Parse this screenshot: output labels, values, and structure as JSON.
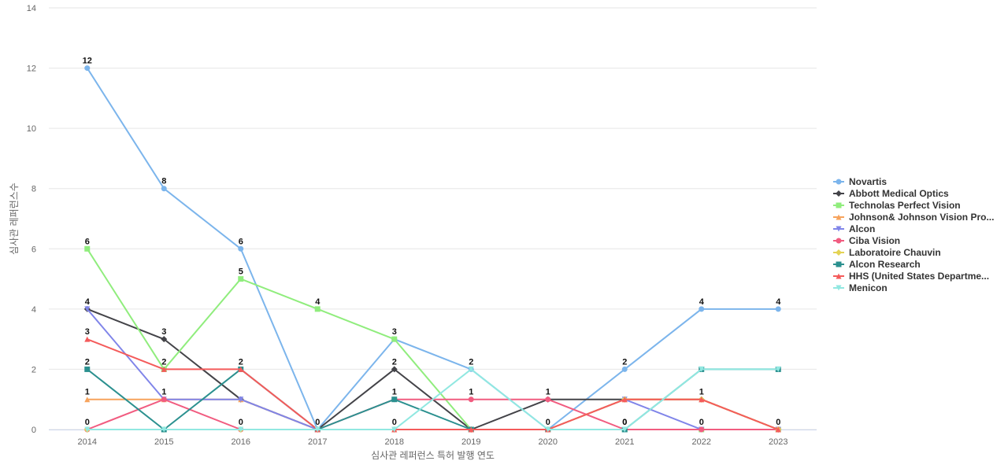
{
  "chart_data": {
    "type": "line",
    "xlabel": "심사관 레퍼런스 특허 발행 연도",
    "ylabel": "심사관 레퍼런스수",
    "ylim": [
      0,
      14
    ],
    "yticks": [
      0,
      2,
      4,
      6,
      8,
      10,
      12,
      14
    ],
    "grid": true,
    "legend_position": "right",
    "categories": [
      "2014",
      "2015",
      "2016",
      "2017",
      "2018",
      "2019",
      "2020",
      "2021",
      "2022",
      "2023"
    ],
    "series": [
      {
        "name": "Novartis",
        "color": "#7cb5ec",
        "marker": "circle",
        "values": [
          12,
          8,
          6,
          0,
          3,
          2,
          0,
          2,
          4,
          4
        ],
        "labels": [
          true,
          true,
          true,
          false,
          true,
          true,
          false,
          true,
          true,
          true
        ]
      },
      {
        "name": "Abbott Medical Optics",
        "color": "#434348",
        "marker": "diamond",
        "values": [
          4,
          3,
          1,
          0,
          2,
          0,
          1,
          1,
          1,
          0
        ],
        "labels": [
          true,
          true,
          false,
          false,
          true,
          false,
          false,
          false,
          false,
          false
        ]
      },
      {
        "name": "Technolas Perfect Vision",
        "color": "#90ed7d",
        "marker": "square",
        "values": [
          6,
          2,
          5,
          4,
          3,
          0,
          0,
          0,
          0,
          0
        ],
        "labels": [
          true,
          true,
          true,
          true,
          false,
          false,
          false,
          false,
          false,
          false
        ]
      },
      {
        "name": "Johnson& Johnson Vision Pro...",
        "color": "#f7a35c",
        "marker": "triangle",
        "values": [
          1,
          1,
          1,
          0,
          0,
          0,
          0,
          1,
          1,
          0
        ],
        "labels": [
          true,
          false,
          false,
          false,
          false,
          false,
          false,
          false,
          false,
          false
        ]
      },
      {
        "name": "Alcon",
        "color": "#8085e9",
        "marker": "triangle-down",
        "values": [
          4,
          1,
          1,
          0,
          0,
          0,
          0,
          1,
          0,
          0
        ],
        "labels": [
          false,
          false,
          false,
          false,
          false,
          false,
          false,
          false,
          false,
          false
        ]
      },
      {
        "name": "Ciba Vision",
        "color": "#f15c80",
        "marker": "circle",
        "values": [
          0,
          1,
          0,
          0,
          1,
          1,
          1,
          0,
          0,
          0
        ],
        "labels": [
          true,
          true,
          true,
          false,
          false,
          true,
          true,
          false,
          true,
          true
        ]
      },
      {
        "name": "Laboratoire Chauvin",
        "color": "#e4d354",
        "marker": "diamond",
        "values": [
          0,
          0,
          0,
          0,
          0,
          0,
          0,
          1,
          1,
          0
        ],
        "labels": [
          false,
          false,
          false,
          false,
          false,
          false,
          false,
          false,
          true,
          false
        ]
      },
      {
        "name": "Alcon Research",
        "color": "#2b908f",
        "marker": "square",
        "values": [
          2,
          0,
          2,
          0,
          1,
          0,
          0,
          0,
          2,
          2
        ],
        "labels": [
          true,
          false,
          false,
          false,
          true,
          false,
          false,
          true,
          false,
          false
        ]
      },
      {
        "name": "HHS (United States Departme...",
        "color": "#f45b5b",
        "marker": "triangle",
        "values": [
          3,
          2,
          2,
          0,
          0,
          0,
          0,
          1,
          1,
          0
        ],
        "labels": [
          true,
          false,
          true,
          false,
          false,
          false,
          false,
          false,
          false,
          false
        ]
      },
      {
        "name": "Menicon",
        "color": "#91e8e1",
        "marker": "triangle-down",
        "values": [
          0,
          0,
          0,
          0,
          0,
          2,
          0,
          0,
          2,
          2
        ],
        "labels": [
          false,
          false,
          false,
          true,
          true,
          false,
          true,
          true,
          false,
          false
        ]
      }
    ]
  }
}
